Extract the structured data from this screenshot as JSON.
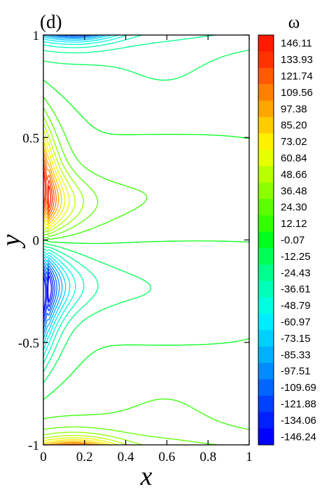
{
  "chart_data": {
    "type": "contour",
    "panel_label": "(d)",
    "xlabel": "x",
    "ylabel": "y",
    "xlim": [
      0,
      1
    ],
    "ylim": [
      -1,
      1
    ],
    "x_ticks": [
      "0",
      "0.2",
      "0.4",
      "0.6",
      "0.8",
      "1"
    ],
    "y_ticks": [
      "1",
      "0.5",
      "0",
      "-0.5",
      "-1"
    ],
    "grid": false,
    "colorbar": {
      "title": "ω",
      "position": "right",
      "levels": [
        "146.11",
        "133.93",
        "121.74",
        "109.56",
        "97.38",
        "85.20",
        "73.02",
        "60.84",
        "48.66",
        "36.48",
        "24.30",
        "12.12",
        "-0.07",
        "-12.25",
        "-24.43",
        "-36.61",
        "-48.79",
        "-60.97",
        "-73.15",
        "-85.33",
        "-97.51",
        "-109.69",
        "-121.88",
        "-134.06",
        "-146.24"
      ],
      "colors": [
        "#ff1a00",
        "#ff3300",
        "#ff5a00",
        "#ff8000",
        "#ffa600",
        "#ffcc00",
        "#fff000",
        "#e6ff00",
        "#b8ff00",
        "#8cff00",
        "#5cff00",
        "#33ff00",
        "#00ff1a",
        "#00ff55",
        "#00ff8c",
        "#00ffb8",
        "#00ffe0",
        "#00ecff",
        "#00d0ff",
        "#00b0ff",
        "#008cff",
        "#0066ff",
        "#0040ff",
        "#0020ff",
        "#0000ff"
      ]
    },
    "features": [
      {
        "name": "positive core near left wall",
        "x": 0.02,
        "y": 0.27,
        "omega": 146.11
      },
      {
        "name": "negative core near left wall",
        "x": 0.02,
        "y": -0.27,
        "omega": -146.24
      },
      {
        "name": "top wall negative layer",
        "x": 0.12,
        "y": 0.97,
        "omega": -85.33
      },
      {
        "name": "bottom wall positive layer",
        "x": 0.12,
        "y": -0.97,
        "omega": 85.2
      }
    ]
  }
}
